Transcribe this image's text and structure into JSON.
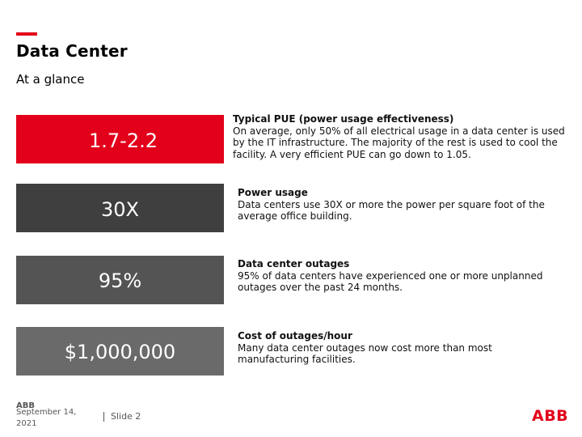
{
  "header": {
    "title": "Data Center",
    "subtitle": "At a glance",
    "accent_color": "#e2001a"
  },
  "stats": [
    {
      "value": "1.7-2.2",
      "color": "#e2001a",
      "heading": "Typical PUE (power usage effectiveness)",
      "text": "On average, only 50% of all electrical usage in a data center is used by the IT infrastructure.  The majority of the rest is used to cool the facility. A very efficient PUE can go down to 1.05."
    },
    {
      "value": "30X",
      "color": "#3f3f3f",
      "heading": "Power usage",
      "text": "Data centers use 30X or more the power per square foot of the average office building."
    },
    {
      "value": "95%",
      "color": "#545454",
      "heading": "Data center outages",
      "text": "95% of data centers have experienced one or more unplanned outages over the past 24 months."
    },
    {
      "value": "$1,000,000",
      "color": "#6a6a6a",
      "heading": "Cost of outages/hour",
      "text": "Many data center outages now cost more than most manufacturing facilities."
    }
  ],
  "footer": {
    "small_logo": "ABB",
    "date": "September 14, 2021",
    "slide": "Slide 2",
    "logo": "ABB"
  }
}
